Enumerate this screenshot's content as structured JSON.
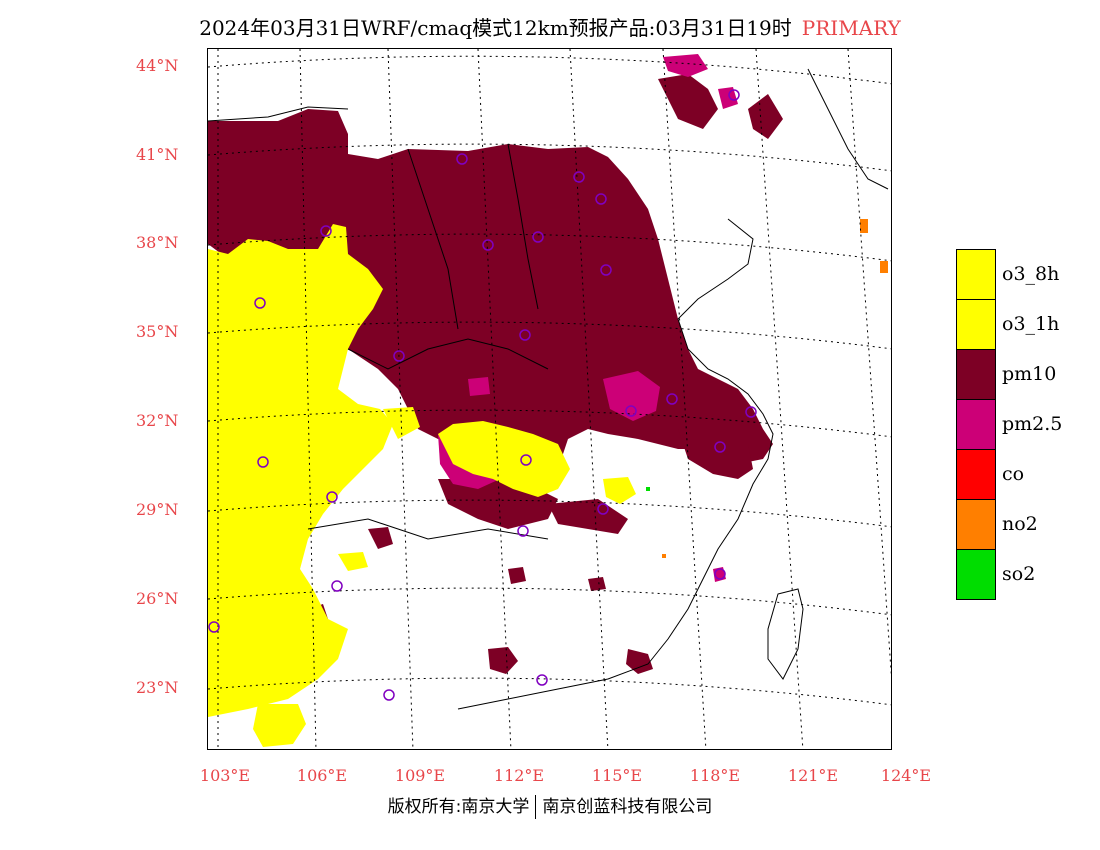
{
  "title": "2024年03月31日WRF/cmaq模式12km预报产品:03月31日19时",
  "primary_tag": "PRIMARY",
  "lat_labels": [
    "44°N",
    "41°N",
    "38°N",
    "35°N",
    "32°N",
    "29°N",
    "26°N",
    "23°N"
  ],
  "lon_labels": [
    "103°E",
    "106°E",
    "109°E",
    "112°E",
    "115°E",
    "118°E",
    "121°E",
    "124°E"
  ],
  "legend": [
    {
      "label": "o3_8h",
      "color": "#ffff00"
    },
    {
      "label": "o3_1h",
      "color": "#ffff00"
    },
    {
      "label": "pm10",
      "color": "#7d0025"
    },
    {
      "label": "pm2.5",
      "color": "#cc0077"
    },
    {
      "label": "co",
      "color": "#ff0000"
    },
    {
      "label": "no2",
      "color": "#ff7f00"
    },
    {
      "label": "so2",
      "color": "#00dd00"
    }
  ],
  "footer": {
    "left": "版权所有:南京大学",
    "right": "南京创蓝科技有限公司"
  }
}
